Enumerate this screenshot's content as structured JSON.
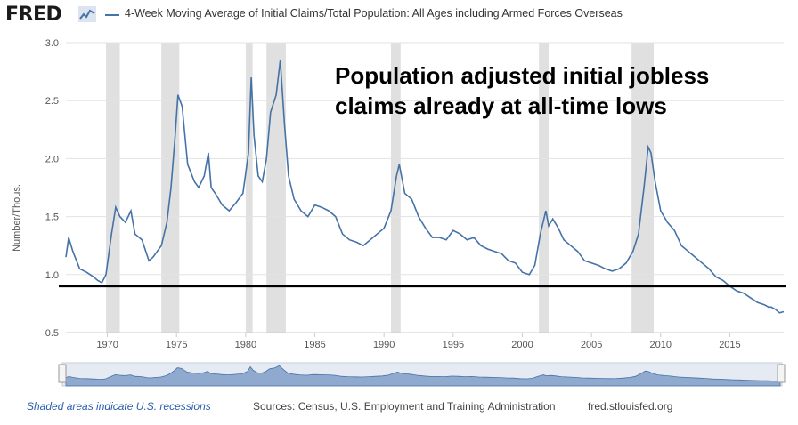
{
  "header": {
    "logo": "FRED",
    "series_title": "4-Week Moving Average of Initial Claims/Total Population: All Ages including Armed Forces Overseas"
  },
  "footer": {
    "recession_note": "Shaded areas indicate U.S. recessions",
    "sources": "Sources: Census, U.S. Employment and Training Administration",
    "url": "fred.stlouisfed.org"
  },
  "colors": {
    "series": "#4572a7",
    "recession": "#e0e0e0",
    "reference_line": "#000000"
  },
  "chart_data": {
    "type": "line",
    "title": "",
    "xlabel": "",
    "ylabel": "Number/Thous.",
    "xlim": [
      1967,
      2018.9
    ],
    "ylim": [
      0.5,
      3.0
    ],
    "yticks": [
      0.5,
      1.0,
      1.5,
      2.0,
      2.5,
      3.0
    ],
    "xticks": [
      1970,
      1975,
      1980,
      1985,
      1990,
      1995,
      2000,
      2005,
      2010,
      2015
    ],
    "grid": true,
    "recessions": [
      [
        1969.9,
        1970.9
      ],
      [
        1973.9,
        1975.2
      ],
      [
        1980.0,
        1980.5
      ],
      [
        1981.5,
        1982.9
      ],
      [
        1990.5,
        1991.2
      ],
      [
        2001.2,
        2001.9
      ],
      [
        2007.9,
        2009.5
      ]
    ],
    "reference_line": 0.9,
    "annotation": [
      "Population adjusted initial jobless",
      "claims already at all-time lows"
    ],
    "series": [
      {
        "name": "4-Week Moving Average of Initial Claims/Total Population",
        "x": [
          1967.0,
          1967.2,
          1967.5,
          1968.0,
          1968.5,
          1969.0,
          1969.3,
          1969.6,
          1969.9,
          1970.3,
          1970.6,
          1970.9,
          1971.3,
          1971.7,
          1972.0,
          1972.5,
          1973.0,
          1973.3,
          1973.6,
          1973.9,
          1974.3,
          1974.6,
          1974.9,
          1975.1,
          1975.4,
          1975.8,
          1976.3,
          1976.6,
          1977.0,
          1977.3,
          1977.5,
          1977.8,
          1978.3,
          1978.8,
          1979.3,
          1979.8,
          1980.2,
          1980.4,
          1980.6,
          1980.9,
          1981.2,
          1981.5,
          1981.8,
          1982.2,
          1982.5,
          1982.8,
          1983.1,
          1983.5,
          1984.0,
          1984.5,
          1985.0,
          1985.5,
          1986.0,
          1986.5,
          1987.0,
          1987.5,
          1988.0,
          1988.5,
          1989.0,
          1989.5,
          1990.0,
          1990.5,
          1990.9,
          1991.1,
          1991.5,
          1992.0,
          1992.5,
          1993.0,
          1993.5,
          1994.0,
          1994.5,
          1995.0,
          1995.5,
          1996.0,
          1996.5,
          1997.0,
          1997.5,
          1998.0,
          1998.5,
          1999.0,
          1999.5,
          2000.0,
          2000.5,
          2000.9,
          2001.3,
          2001.7,
          2001.9,
          2002.2,
          2002.6,
          2003.0,
          2003.5,
          2004.0,
          2004.5,
          2005.0,
          2005.5,
          2006.0,
          2006.5,
          2007.0,
          2007.5,
          2008.0,
          2008.4,
          2008.8,
          2009.1,
          2009.3,
          2009.6,
          2010.0,
          2010.5,
          2011.0,
          2011.5,
          2012.0,
          2012.5,
          2013.0,
          2013.5,
          2014.0,
          2014.5,
          2015.0,
          2015.5,
          2016.0,
          2016.5,
          2017.0,
          2017.5,
          2017.8,
          2018.0,
          2018.3,
          2018.6,
          2018.9
        ],
        "values": [
          1.15,
          1.32,
          1.2,
          1.05,
          1.02,
          0.98,
          0.95,
          0.93,
          1.0,
          1.35,
          1.58,
          1.5,
          1.45,
          1.55,
          1.35,
          1.3,
          1.12,
          1.15,
          1.2,
          1.25,
          1.45,
          1.75,
          2.2,
          2.55,
          2.45,
          1.95,
          1.8,
          1.75,
          1.85,
          2.05,
          1.75,
          1.7,
          1.6,
          1.55,
          1.62,
          1.7,
          2.05,
          2.7,
          2.2,
          1.85,
          1.8,
          2.0,
          2.4,
          2.55,
          2.85,
          2.3,
          1.85,
          1.65,
          1.55,
          1.5,
          1.6,
          1.58,
          1.55,
          1.5,
          1.35,
          1.3,
          1.28,
          1.25,
          1.3,
          1.35,
          1.4,
          1.55,
          1.85,
          1.95,
          1.7,
          1.65,
          1.5,
          1.4,
          1.32,
          1.32,
          1.3,
          1.38,
          1.35,
          1.3,
          1.32,
          1.25,
          1.22,
          1.2,
          1.18,
          1.12,
          1.1,
          1.02,
          1.0,
          1.08,
          1.35,
          1.55,
          1.42,
          1.48,
          1.4,
          1.3,
          1.25,
          1.2,
          1.12,
          1.1,
          1.08,
          1.05,
          1.03,
          1.05,
          1.1,
          1.2,
          1.35,
          1.75,
          2.1,
          2.05,
          1.8,
          1.55,
          1.45,
          1.38,
          1.25,
          1.2,
          1.15,
          1.1,
          1.05,
          0.98,
          0.95,
          0.9,
          0.86,
          0.84,
          0.8,
          0.76,
          0.74,
          0.72,
          0.72,
          0.7,
          0.67,
          0.68
        ]
      }
    ]
  }
}
